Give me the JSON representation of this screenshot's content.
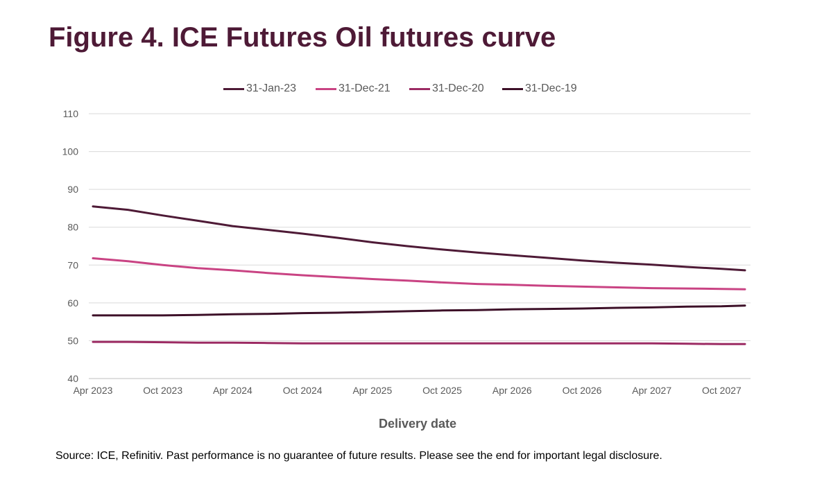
{
  "title": "Figure 4. ICE Futures Oil futures curve",
  "source": "Source: ICE, Refinitiv. Past performance is no guarantee of future results. Please see the end for important legal disclosure.",
  "colors": {
    "title": "#4e1a36",
    "axis_text": "#595959",
    "grid": "#d9d9d9"
  },
  "chart_data": {
    "type": "line",
    "xlabel": "Delivery date",
    "ylabel": "",
    "ylim": [
      40,
      110
    ],
    "yticks": [
      40,
      50,
      60,
      70,
      80,
      90,
      100,
      110
    ],
    "xlim": [
      "2023-04",
      "2027-12"
    ],
    "xticks": [
      "Apr 2023",
      "Oct 2023",
      "Apr 2024",
      "Oct 2024",
      "Apr 2025",
      "Oct 2025",
      "Apr 2026",
      "Oct 2026",
      "Apr 2027",
      "Oct 2027"
    ],
    "grid": "horizontal",
    "legend_position": "top",
    "series": [
      {
        "name": "31-Jan-23",
        "color": "#4e1a36",
        "points": [
          [
            "2023-04",
            85.5
          ],
          [
            "2023-07",
            84.6
          ],
          [
            "2023-10",
            83.1
          ],
          [
            "2024-01",
            81.7
          ],
          [
            "2024-04",
            80.3
          ],
          [
            "2024-07",
            79.3
          ],
          [
            "2024-10",
            78.3
          ],
          [
            "2025-01",
            77.2
          ],
          [
            "2025-04",
            76.0
          ],
          [
            "2025-07",
            75.0
          ],
          [
            "2025-10",
            74.1
          ],
          [
            "2026-01",
            73.3
          ],
          [
            "2026-04",
            72.6
          ],
          [
            "2026-07",
            71.9
          ],
          [
            "2026-10",
            71.2
          ],
          [
            "2027-01",
            70.6
          ],
          [
            "2027-04",
            70.1
          ],
          [
            "2027-07",
            69.5
          ],
          [
            "2027-10",
            69.0
          ],
          [
            "2027-12",
            68.6
          ]
        ]
      },
      {
        "name": "31-Dec-21",
        "color": "#c94383",
        "points": [
          [
            "2023-04",
            71.8
          ],
          [
            "2023-07",
            71.0
          ],
          [
            "2023-10",
            70.0
          ],
          [
            "2024-01",
            69.2
          ],
          [
            "2024-04",
            68.6
          ],
          [
            "2024-07",
            67.9
          ],
          [
            "2024-10",
            67.3
          ],
          [
            "2025-01",
            66.8
          ],
          [
            "2025-04",
            66.3
          ],
          [
            "2025-07",
            65.9
          ],
          [
            "2025-10",
            65.4
          ],
          [
            "2026-01",
            65.0
          ],
          [
            "2026-04",
            64.8
          ],
          [
            "2026-07",
            64.5
          ],
          [
            "2026-10",
            64.3
          ],
          [
            "2027-01",
            64.1
          ],
          [
            "2027-04",
            63.9
          ],
          [
            "2027-07",
            63.8
          ],
          [
            "2027-10",
            63.7
          ],
          [
            "2027-12",
            63.6
          ]
        ]
      },
      {
        "name": "31-Dec-20",
        "color": "#9c2b63",
        "points": [
          [
            "2023-04",
            49.7
          ],
          [
            "2023-07",
            49.7
          ],
          [
            "2023-10",
            49.6
          ],
          [
            "2024-01",
            49.5
          ],
          [
            "2024-04",
            49.5
          ],
          [
            "2024-07",
            49.4
          ],
          [
            "2024-10",
            49.3
          ],
          [
            "2025-01",
            49.3
          ],
          [
            "2025-04",
            49.3
          ],
          [
            "2025-07",
            49.3
          ],
          [
            "2025-10",
            49.3
          ],
          [
            "2026-01",
            49.3
          ],
          [
            "2026-04",
            49.3
          ],
          [
            "2026-07",
            49.3
          ],
          [
            "2026-10",
            49.3
          ],
          [
            "2027-01",
            49.3
          ],
          [
            "2027-04",
            49.3
          ],
          [
            "2027-07",
            49.2
          ],
          [
            "2027-10",
            49.1
          ],
          [
            "2027-12",
            49.1
          ]
        ]
      },
      {
        "name": "31-Dec-19",
        "color": "#3d1028",
        "points": [
          [
            "2023-04",
            56.7
          ],
          [
            "2023-07",
            56.7
          ],
          [
            "2023-10",
            56.7
          ],
          [
            "2024-01",
            56.8
          ],
          [
            "2024-04",
            57.0
          ],
          [
            "2024-07",
            57.1
          ],
          [
            "2024-10",
            57.3
          ],
          [
            "2025-01",
            57.4
          ],
          [
            "2025-04",
            57.6
          ],
          [
            "2025-07",
            57.8
          ],
          [
            "2025-10",
            58.0
          ],
          [
            "2026-01",
            58.1
          ],
          [
            "2026-04",
            58.3
          ],
          [
            "2026-07",
            58.4
          ],
          [
            "2026-10",
            58.5
          ],
          [
            "2027-01",
            58.7
          ],
          [
            "2027-04",
            58.8
          ],
          [
            "2027-07",
            59.0
          ],
          [
            "2027-10",
            59.1
          ],
          [
            "2027-12",
            59.3
          ]
        ]
      }
    ]
  }
}
